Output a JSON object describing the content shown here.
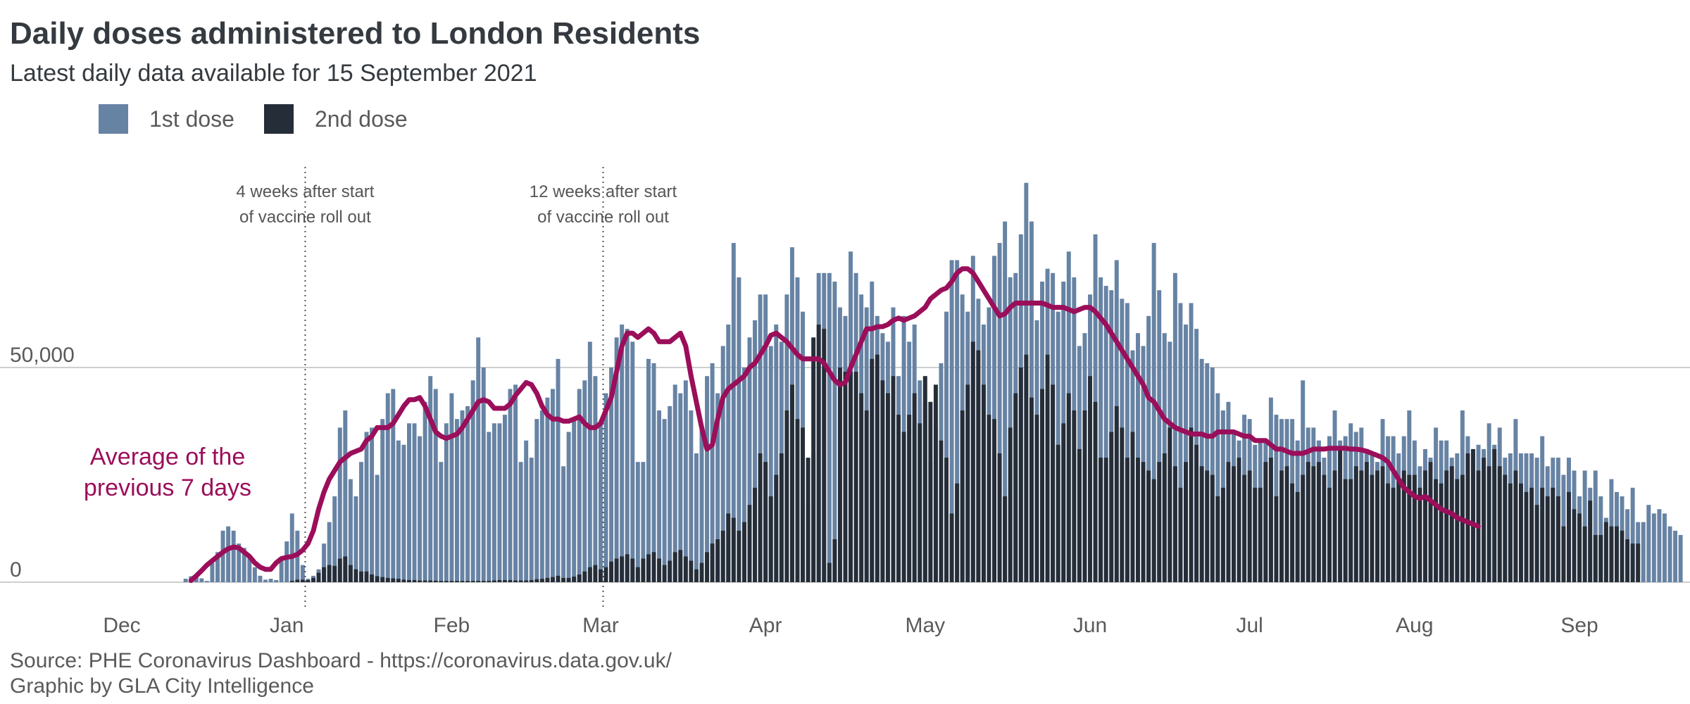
{
  "colors": {
    "dose1": "#6783a4",
    "dose2": "#252d38",
    "avg": "#9b0e5a",
    "grid": "#cfcfcf",
    "text": "#343a3f",
    "muted": "#5a5a5a"
  },
  "chart_data": {
    "type": "bar",
    "title": "Daily doses administered to London Residents",
    "subtitle": "Latest daily data available for 15 September 2021",
    "legend": [
      "1st dose",
      "2nd dose"
    ],
    "legend_position": "top-left",
    "y_ticks": [
      {
        "value": 0,
        "label": "0"
      },
      {
        "value": 50000,
        "label": "50,000"
      }
    ],
    "ylim": [
      0,
      95000
    ],
    "x_range": [
      "2020-12-01",
      "2021-09-30"
    ],
    "month_ticks": [
      {
        "label": "Dec",
        "day": 0
      },
      {
        "label": "Jan",
        "day": 31
      },
      {
        "label": "Feb",
        "day": 62
      },
      {
        "label": "Mar",
        "day": 90
      },
      {
        "label": "Apr",
        "day": 121
      },
      {
        "label": "May",
        "day": 151
      },
      {
        "label": "Jun",
        "day": 182
      },
      {
        "label": "Jul",
        "day": 212
      },
      {
        "label": "Aug",
        "day": 243
      },
      {
        "label": "Sep",
        "day": 274
      }
    ],
    "vlines": [
      {
        "day": 35,
        "label": [
          "4 weeks after start",
          "of vaccine roll out"
        ]
      },
      {
        "day": 91,
        "label": [
          "12 weeks after start",
          "of vaccine roll out"
        ]
      }
    ],
    "avg_label": [
      "Average of the",
      "previous 7 days"
    ],
    "x_start_day": 6,
    "series_note": "daily values from 7 December 2020 to 15 September 2021",
    "series": [
      {
        "name": "1st dose",
        "values": [
          0,
          0,
          0,
          0,
          0,
          0,
          800,
          1400,
          1800,
          900,
          300,
          4500,
          7000,
          12000,
          13000,
          12000,
          9000,
          8000,
          6000,
          3500,
          1500,
          600,
          800,
          500,
          5000,
          9500,
          16000,
          12000,
          4000,
          800,
          1500,
          3000,
          9000,
          14000,
          20000,
          36000,
          40000,
          24000,
          20000,
          28000,
          35000,
          36000,
          25000,
          38000,
          44000,
          45000,
          33000,
          32000,
          37000,
          37000,
          34000,
          42000,
          48000,
          45000,
          28000,
          37000,
          44000,
          38000,
          40000,
          41000,
          47000,
          57000,
          50000,
          35000,
          37000,
          37000,
          39000,
          45000,
          46000,
          28000,
          33000,
          29000,
          38000,
          40000,
          43000,
          45000,
          52000,
          27000,
          35000,
          38000,
          45000,
          47000,
          56000,
          48000,
          37000,
          44000,
          50000,
          57000,
          60000,
          59000,
          56000,
          28000,
          28000,
          52000,
          51000,
          40000,
          38000,
          41000,
          46000,
          44000,
          47000,
          40000,
          30000,
          36000,
          48000,
          51000,
          44000,
          55000,
          60000,
          79000,
          71000,
          50000,
          57000,
          61000,
          67000,
          67000,
          55000,
          60000,
          56000,
          67000,
          78000,
          71000,
          63000,
          18000,
          30000,
          72000,
          72000,
          72000,
          70000,
          64000,
          62000,
          77000,
          72000,
          67000,
          64000,
          70000,
          62000,
          58000,
          56000,
          64000,
          48000,
          62000,
          56000,
          60000,
          47000,
          42000,
          28000,
          36000,
          51000,
          63000,
          75000,
          75000,
          67000,
          63000,
          76000,
          66000,
          60000,
          64000,
          76000,
          79000,
          84000,
          71000,
          72000,
          81000,
          93000,
          84000,
          61000,
          70000,
          73000,
          72000,
          63000,
          70000,
          77000,
          71000,
          55000,
          58000,
          67000,
          81000,
          71000,
          69000,
          68000,
          75000,
          66000,
          65000,
          54000,
          58000,
          55000,
          62000,
          79000,
          68000,
          58000,
          56000,
          72000,
          65000,
          60000,
          65000,
          59000,
          52000,
          51000,
          50000,
          44000,
          40000,
          42000,
          35000,
          33000,
          39000,
          38000,
          32000,
          33000,
          33000,
          43000,
          39000,
          38000,
          38000,
          38000,
          33000,
          47000,
          36000,
          36000,
          33000,
          29000,
          34000,
          40000,
          33000,
          34000,
          37000,
          35000,
          36000,
          31000,
          30000,
          28000,
          38000,
          34000,
          34000,
          30000,
          34000,
          40000,
          33000,
          27000,
          31000,
          29000,
          36000,
          33000,
          33000,
          29000,
          30000,
          40000,
          34000,
          28000,
          32000,
          31000,
          37000,
          32000,
          36000,
          29000,
          30000,
          38000,
          30000,
          30000,
          30000,
          29000,
          34000,
          27000,
          29000,
          29000,
          25000,
          29000,
          26000,
          20000,
          26000,
          22000,
          26000,
          20000,
          15000,
          24000,
          21000,
          20000,
          17000,
          22000,
          14000,
          14000,
          18000,
          16000,
          17000,
          16000,
          13000,
          12000,
          11000
        ],
        "note": "1st dose stacked height = total bar height; 2nd dose drawn in front"
      },
      {
        "name": "2nd dose",
        "values": [
          0,
          0,
          0,
          0,
          0,
          0,
          0,
          0,
          0,
          0,
          0,
          0,
          0,
          0,
          0,
          0,
          0,
          0,
          0,
          0,
          0,
          0,
          0,
          0,
          0,
          0,
          300,
          600,
          600,
          500,
          1000,
          2200,
          3500,
          4000,
          3800,
          5500,
          6000,
          4000,
          3000,
          2500,
          2500,
          1800,
          1400,
          1200,
          1000,
          900,
          800,
          600,
          500,
          500,
          400,
          400,
          400,
          350,
          300,
          300,
          300,
          300,
          300,
          300,
          300,
          300,
          300,
          300,
          400,
          500,
          500,
          500,
          400,
          400,
          400,
          500,
          700,
          800,
          1000,
          1200,
          1500,
          1000,
          1000,
          1300,
          1800,
          2500,
          3500,
          4000,
          3000,
          3500,
          4800,
          5500,
          6000,
          6500,
          5500,
          3500,
          5500,
          6500,
          7000,
          5500,
          4000,
          5000,
          7000,
          7500,
          6000,
          5000,
          3000,
          4500,
          7000,
          9000,
          10000,
          12000,
          16000,
          15000,
          12000,
          14000,
          18000,
          22000,
          30000,
          28000,
          20000,
          25000,
          30000,
          40000,
          46000,
          38000,
          36000,
          29000,
          57000,
          60000,
          59000,
          4500,
          10000,
          50000,
          49000,
          49000,
          49000,
          44000,
          40000,
          52000,
          53000,
          47000,
          44000,
          48000,
          39000,
          35000,
          39000,
          44000,
          37000,
          48000,
          42000,
          46000,
          33000,
          29000,
          16000,
          23000,
          40000,
          46000,
          56000,
          54000,
          46000,
          39000,
          38000,
          30000,
          20000,
          36000,
          44000,
          50000,
          53000,
          43000,
          39000,
          45000,
          53000,
          46000,
          32000,
          37000,
          44000,
          40000,
          31000,
          40000,
          48000,
          42000,
          29000,
          29000,
          35000,
          41000,
          36000,
          29000,
          35000,
          29000,
          28000,
          26000,
          24000,
          28000,
          30000,
          36000,
          27000,
          22000,
          28000,
          36000,
          32000,
          27000,
          26000,
          25000,
          20000,
          22000,
          28000,
          27000,
          29000,
          25000,
          26000,
          22000,
          22000,
          28000,
          29000,
          20000,
          26000,
          27000,
          23000,
          21000,
          25000,
          28000,
          27000,
          28000,
          25000,
          22000,
          26000,
          31000,
          24000,
          24000,
          27000,
          26000,
          28000,
          25000,
          26000,
          27000,
          23000,
          22000,
          24000,
          26000,
          25000,
          25000,
          22000,
          26000,
          28000,
          24000,
          23000,
          26000,
          27000,
          24000,
          25000,
          30000,
          31000,
          26000,
          29000,
          27000,
          31000,
          27000,
          25000,
          23000,
          26000,
          23000,
          21000,
          22000,
          18000,
          22000,
          20000,
          22000,
          20000,
          13000,
          21000,
          17000,
          16000,
          13000,
          19000,
          11000,
          11000,
          14000,
          13000,
          13000,
          12000,
          10000,
          9000,
          9000
        ]
      },
      {
        "name": "7-day average",
        "x_start_day": 13,
        "values": [
          400,
          1500,
          2700,
          4000,
          5000,
          6000,
          7000,
          7800,
          8200,
          8000,
          7000,
          6000,
          4500,
          3500,
          3000,
          3000,
          4500,
          5500,
          5800,
          6000,
          6500,
          7500,
          9000,
          12000,
          17000,
          21000,
          24000,
          26000,
          28000,
          29000,
          30000,
          30500,
          31000,
          33000,
          34000,
          36000,
          36000,
          36000,
          37000,
          39000,
          41000,
          42500,
          42500,
          43000,
          41000,
          38000,
          35000,
          34000,
          33500,
          34000,
          34500,
          36000,
          38000,
          40000,
          42000,
          42500,
          42000,
          40500,
          40500,
          40500,
          41500,
          43500,
          45000,
          46500,
          46000,
          44000,
          41000,
          39000,
          38000,
          38000,
          37500,
          37500,
          38000,
          38500,
          37000,
          36000,
          36000,
          37000,
          40000,
          43000,
          49000,
          55000,
          58000,
          58000,
          57000,
          58000,
          59000,
          58000,
          56000,
          56000,
          56000,
          57000,
          58000,
          55000,
          48000,
          42000,
          36000,
          31000,
          32000,
          38000,
          43000,
          45000,
          46000,
          47000,
          48000,
          50000,
          51000,
          53000,
          55000,
          57500,
          58000,
          57000,
          56000,
          54500,
          53000,
          52000,
          52000,
          52000,
          52000,
          51000,
          49000,
          47000,
          46000,
          46500,
          50000,
          53000,
          56000,
          59000,
          59000,
          59500,
          59500,
          60000,
          61000,
          61500,
          61000,
          61500,
          62000,
          63000,
          64000,
          66000,
          67000,
          68000,
          68500,
          70000,
          72000,
          73000,
          73000,
          72000,
          70000,
          68000,
          66000,
          64000,
          62000,
          62500,
          64000,
          65000,
          65000,
          65000,
          65000,
          65000,
          65000,
          64500,
          64000,
          64000,
          64000,
          63500,
          63000,
          63500,
          64000,
          64000,
          63000,
          61500,
          60000,
          58000,
          56000,
          54000,
          52000,
          50000,
          48000,
          46000,
          43000,
          42000,
          40000,
          38000,
          37000,
          36000,
          35500,
          35000,
          34500,
          34500,
          34500,
          34000,
          34000,
          35000,
          35000,
          35000,
          35000,
          34500,
          34000,
          34000,
          33000,
          33000,
          33000,
          32000,
          31000,
          31000,
          30500,
          30000,
          30000,
          30000,
          30500,
          31000,
          31000,
          31000,
          31200,
          31200,
          31200,
          31200,
          31000,
          31000,
          30800,
          30500,
          30000,
          29500,
          29000,
          28000,
          26000,
          24000,
          22000,
          21000,
          20000,
          19500,
          20000,
          19000,
          18000,
          17000,
          16500,
          16000,
          15000,
          14500,
          14000,
          13500,
          13000
        ]
      }
    ]
  },
  "footer": {
    "source": "Source: PHE Coronavirus Dashboard - https://coronavirus.data.gov.uk/",
    "credit": "Graphic by GLA City Intelligence"
  }
}
